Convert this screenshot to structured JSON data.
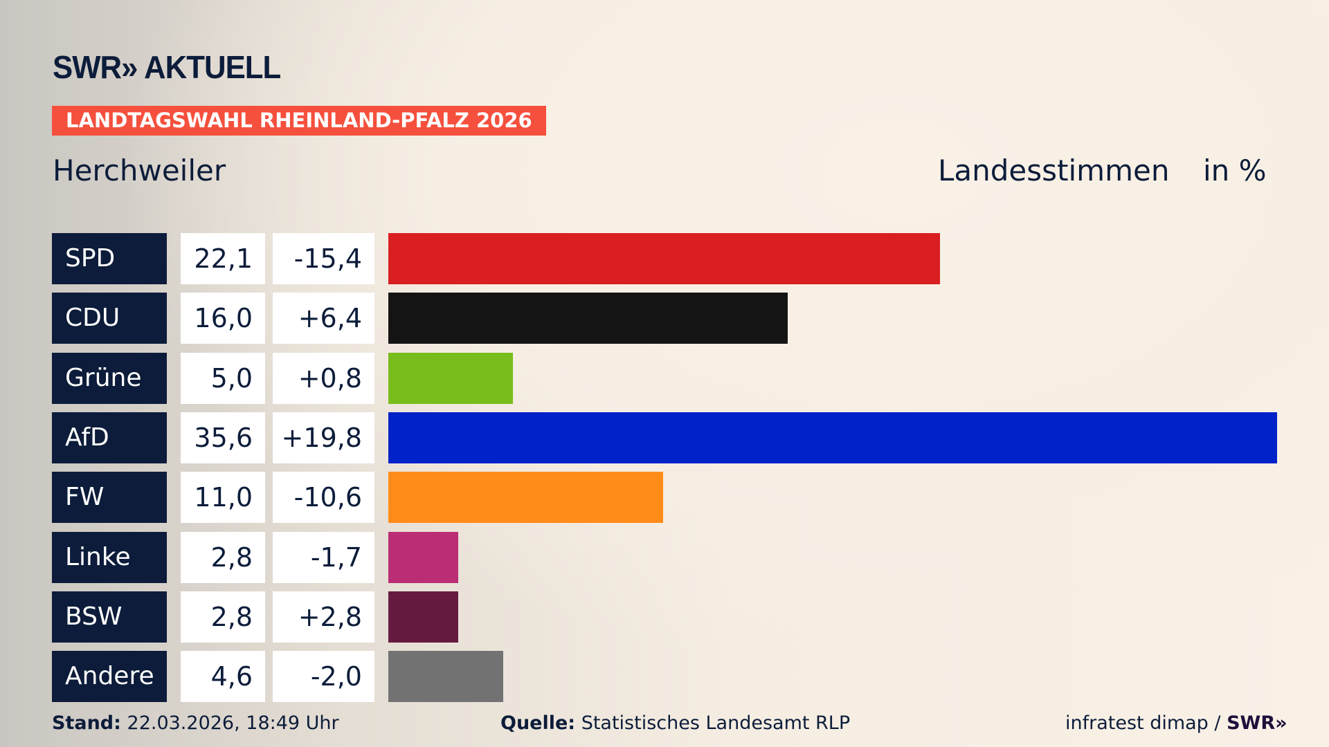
{
  "header": {
    "logo": "SWR» AKTUELL",
    "banner": "LANDTAGSWAHL RHEINLAND-PFALZ 2026",
    "place": "Herchweiler",
    "measure": "Landesstimmen",
    "unit": "in %"
  },
  "chart_data": {
    "type": "bar",
    "orientation": "horizontal",
    "categories": [
      "SPD",
      "CDU",
      "Grüne",
      "AfD",
      "FW",
      "Linke",
      "BSW",
      "Andere"
    ],
    "values": [
      22.1,
      16.0,
      5.0,
      35.6,
      11.0,
      2.8,
      2.8,
      4.6
    ],
    "value_labels": [
      "22,1",
      "16,0",
      "5,0",
      "35,6",
      "11,0",
      "2,8",
      "2,8",
      "4,6"
    ],
    "change_labels": [
      "-15,4",
      "+6,4",
      "+0,8",
      "+19,8",
      "-10,6",
      "-1,7",
      "+2,8",
      "-2,0"
    ],
    "changes": [
      -15.4,
      6.4,
      0.8,
      19.8,
      -10.6,
      -1.7,
      2.8,
      -2.0
    ],
    "colors": [
      "#d91f21",
      "#141414",
      "#78bd1c",
      "#0022c8",
      "#ff8c19",
      "#bb2e75",
      "#661a3f",
      "#727272"
    ],
    "xlim": [
      0,
      35.6
    ],
    "grid": false
  },
  "footer": {
    "stand_label": "Stand:",
    "stand_value": "22.03.2026, 18:49 Uhr",
    "source_label": "Quelle:",
    "source_value": "Statistisches Landesamt RLP",
    "credit": "infratest dimap /",
    "credit_logo": "SWR»"
  }
}
